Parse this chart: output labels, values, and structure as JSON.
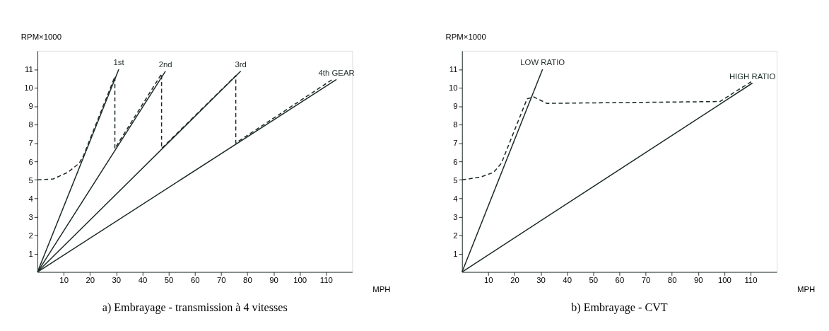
{
  "chart_data": [
    {
      "type": "line",
      "title": "a) Embrayage - transmission à 4 vitesses",
      "xlabel": "MPH",
      "ylabel": "RPM×1000",
      "xlim": [
        0,
        120
      ],
      "ylim": [
        0,
        12
      ],
      "xticks": [
        10,
        20,
        30,
        40,
        50,
        60,
        70,
        80,
        90,
        100,
        110
      ],
      "yticks": [
        1,
        2,
        3,
        4,
        5,
        6,
        7,
        8,
        9,
        10,
        11
      ],
      "grid": false,
      "series": [
        {
          "name": "1st",
          "color": "#1c2b24",
          "x": [
            0,
            31
          ],
          "values": [
            0,
            11
          ]
        },
        {
          "name": "2nd",
          "color": "#1c2b24",
          "x": [
            0,
            48.8
          ],
          "values": [
            0,
            10.9
          ]
        },
        {
          "name": "3rd",
          "color": "#1c2b24",
          "x": [
            0,
            77.5
          ],
          "values": [
            0,
            10.9
          ]
        },
        {
          "name": "4th GEAR",
          "color": "#1c2b24",
          "x": [
            0,
            114
          ],
          "values": [
            0,
            10.45
          ]
        },
        {
          "color": "#1c2b24",
          "line_style": "dashed",
          "x": [
            0,
            6,
            11.5,
            15.9,
            17.5,
            29.5,
            29.5,
            47.3,
            47.3,
            75.6,
            75.6,
            81.5,
            113
          ],
          "values": [
            5,
            5.05,
            5.4,
            5.9,
            6.3,
            10.6,
            6.7,
            10.75,
            6.7,
            10.65,
            7.0,
            7.55,
            10.5
          ]
        }
      ]
    },
    {
      "type": "line",
      "title": "b) Embrayage - CVT",
      "xlabel": "MPH",
      "ylabel": "RPM×1000",
      "xlim": [
        0,
        120
      ],
      "ylim": [
        0,
        12
      ],
      "xticks": [
        10,
        20,
        30,
        40,
        50,
        60,
        70,
        80,
        90,
        100,
        110
      ],
      "yticks": [
        1,
        2,
        3,
        4,
        5,
        6,
        7,
        8,
        9,
        10,
        11
      ],
      "grid": false,
      "series": [
        {
          "name": "LOW RATIO",
          "color": "#1c2b24",
          "x": [
            0,
            30.7
          ],
          "values": [
            0,
            11
          ]
        },
        {
          "name": "HIGH RATIO",
          "color": "#1c2b24",
          "x": [
            0,
            110.7
          ],
          "values": [
            0,
            10.25
          ]
        },
        {
          "color": "#1c2b24",
          "line_style": "dashed",
          "x": [
            0,
            7,
            12,
            15,
            24.8,
            27.3,
            30.2,
            32.3,
            98.3,
            110.5
          ],
          "values": [
            5,
            5.15,
            5.4,
            5.9,
            9.4,
            9.5,
            9.3,
            9.15,
            9.25,
            10.35
          ]
        }
      ]
    }
  ]
}
